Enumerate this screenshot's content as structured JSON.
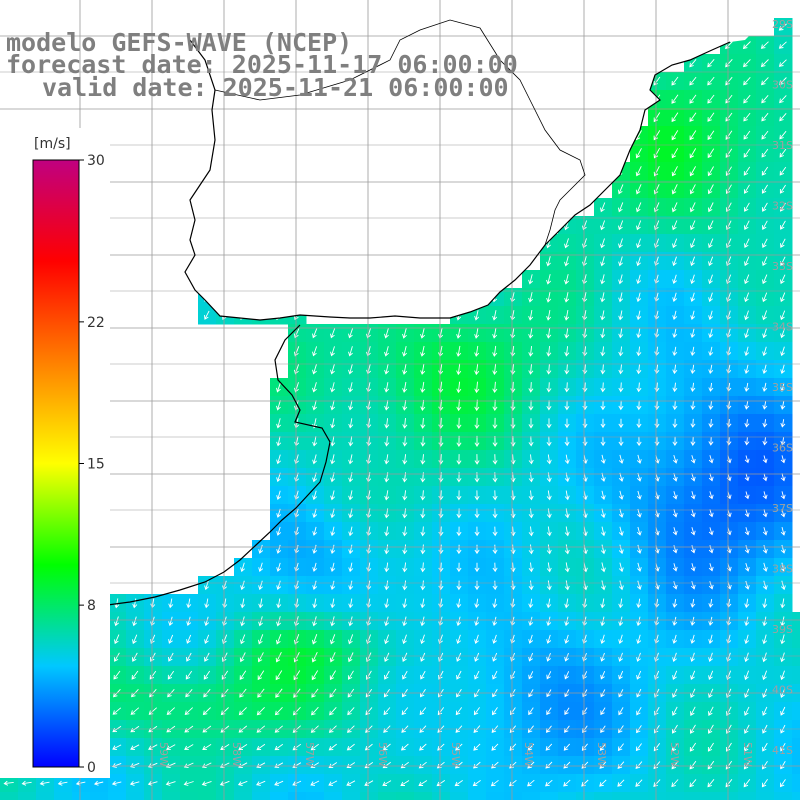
{
  "header": {
    "line1": "modelo GEFS-WAVE (NCEP)",
    "line2": "forecast date: 2025-11-17 06:00:00",
    "line3": "valid date: 2025-11-21 06:00:00"
  },
  "colorbar": {
    "unit": "[m/s]",
    "ticks": [
      "30",
      "22",
      "15",
      "8",
      "0"
    ],
    "colors": [
      "#0000ff",
      "#00c8ff",
      "#00ff00",
      "#ffff00",
      "#ff8000",
      "#ff0000",
      "#c00080"
    ]
  },
  "map": {
    "land_color": "#ffffff",
    "grid_color": "#9a9a9a",
    "coast_color": "#000000",
    "lat_labels": [
      "29S",
      "30S",
      "31S",
      "32S",
      "33S",
      "34S",
      "35S",
      "36S",
      "37S",
      "38S",
      "39S",
      "40S",
      "41S"
    ],
    "lon_labels": [
      "61W",
      "60W",
      "59W",
      "58W",
      "57W",
      "56W",
      "55W",
      "54W",
      "53W",
      "52W",
      "51W"
    ]
  }
}
